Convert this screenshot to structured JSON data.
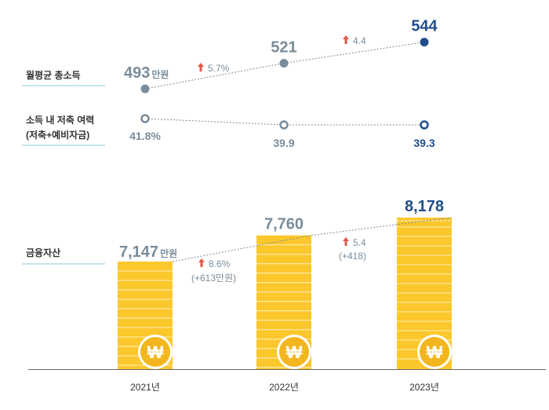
{
  "colors": {
    "gray": "#7a8c9a",
    "navy": "#1f4e8c",
    "label_text": "#333333",
    "underline": "#8ec8d8",
    "arrow": "#e0584a",
    "coin_gold": "#fcc72b",
    "coin_stripe": "#fde79a",
    "coin_icon": "#f3b61f",
    "axis": "#666666"
  },
  "chart_data": [
    {
      "type": "line",
      "name": "monthly-income",
      "label": "월평균 총소득",
      "categories": [
        "2021년",
        "2022년",
        "2023년"
      ],
      "values": [
        493,
        521,
        544
      ],
      "value_labels": [
        "493",
        "521",
        "544"
      ],
      "unit": "만원",
      "marker": "filled",
      "changes": [
        "5.7%",
        "4.4"
      ],
      "ylim": [
        470,
        560
      ]
    },
    {
      "type": "line",
      "name": "saving-capacity",
      "label": "소득 내 저축 여력\n(저축+예비자금)",
      "label_lines": [
        "소득 내 저축 여력",
        "(저축+예비자금)"
      ],
      "categories": [
        "2021년",
        "2022년",
        "2023년"
      ],
      "values": [
        41.8,
        39.9,
        39.3
      ],
      "value_labels": [
        "41.8%",
        "39.9",
        "39.3"
      ],
      "marker": "hollow"
    },
    {
      "type": "bar",
      "name": "financial-assets",
      "label": "금융자산",
      "categories": [
        "2021년",
        "2022년",
        "2023년"
      ],
      "values": [
        7147,
        7760,
        8178
      ],
      "value_labels": [
        "7,147",
        "7,760",
        "8,178"
      ],
      "unit": "만원",
      "changes": [
        {
          "rate": "8.6%",
          "amount": "(+613만원)"
        },
        {
          "rate": "5.4",
          "amount": "(+418)"
        }
      ],
      "coin_symbol": "₩"
    }
  ]
}
